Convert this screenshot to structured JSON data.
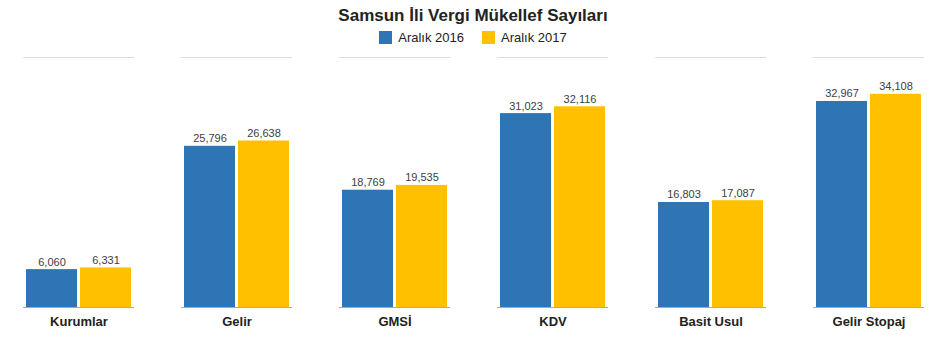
{
  "chart_data": {
    "type": "bar",
    "title": "Samsun İli Vergi Mükellef Sayıları",
    "categories": [
      "Kurumlar",
      "Gelir",
      "GMSİ",
      "KDV",
      "Basit Usul",
      "Gelir Stopaj"
    ],
    "series": [
      {
        "name": "Aralık 2016",
        "color": "#2E75B6",
        "values": [
          6060,
          25796,
          18769,
          31023,
          16803,
          32967
        ],
        "value_labels": [
          "6,060",
          "25,796",
          "18,769",
          "31,023",
          "16,803",
          "32,967"
        ]
      },
      {
        "name": "Aralık 2017",
        "color": "#FFC000",
        "values": [
          6331,
          26638,
          19535,
          32116,
          17087,
          34108
        ],
        "value_labels": [
          "6,331",
          "26,638",
          "19,535",
          "32,116",
          "17,087",
          "34,108"
        ]
      }
    ],
    "ylim": [
      0,
      40000
    ],
    "data_labels": true,
    "tick_labels": "x",
    "legend": "top",
    "grid": false
  }
}
